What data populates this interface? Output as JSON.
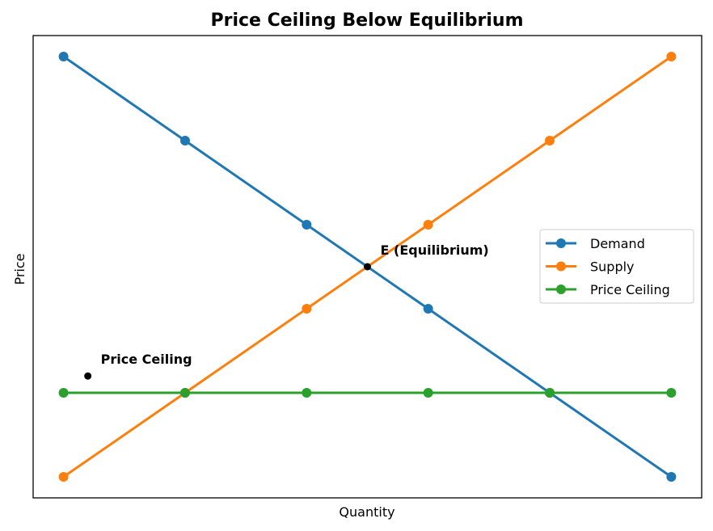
{
  "chart_data": {
    "type": "line",
    "title": "Price Ceiling Below Equilibrium",
    "xlabel": "Quantity",
    "ylabel": "Price",
    "x": [
      0,
      2,
      4,
      6,
      8,
      10
    ],
    "xlim": [
      -0.5,
      10.5
    ],
    "ylim": [
      -0.5,
      10.5
    ],
    "grid": false,
    "ticks_visible": false,
    "legend_position": "center-right",
    "series": [
      {
        "name": "Demand",
        "color": "#1f77b4",
        "values": [
          10,
          8,
          6,
          4,
          2,
          0
        ]
      },
      {
        "name": "Supply",
        "color": "#ff7f0e",
        "values": [
          0,
          2,
          4,
          6,
          8,
          10
        ]
      },
      {
        "name": "Price Ceiling",
        "color": "#2ca02c",
        "values": [
          2,
          2,
          2,
          2,
          2,
          2
        ]
      }
    ],
    "annotations": [
      {
        "text": "E (Equilibrium)",
        "x": 5,
        "y": 5
      },
      {
        "text": "Price Ceiling",
        "x": 0.4,
        "y": 2.4
      }
    ]
  }
}
